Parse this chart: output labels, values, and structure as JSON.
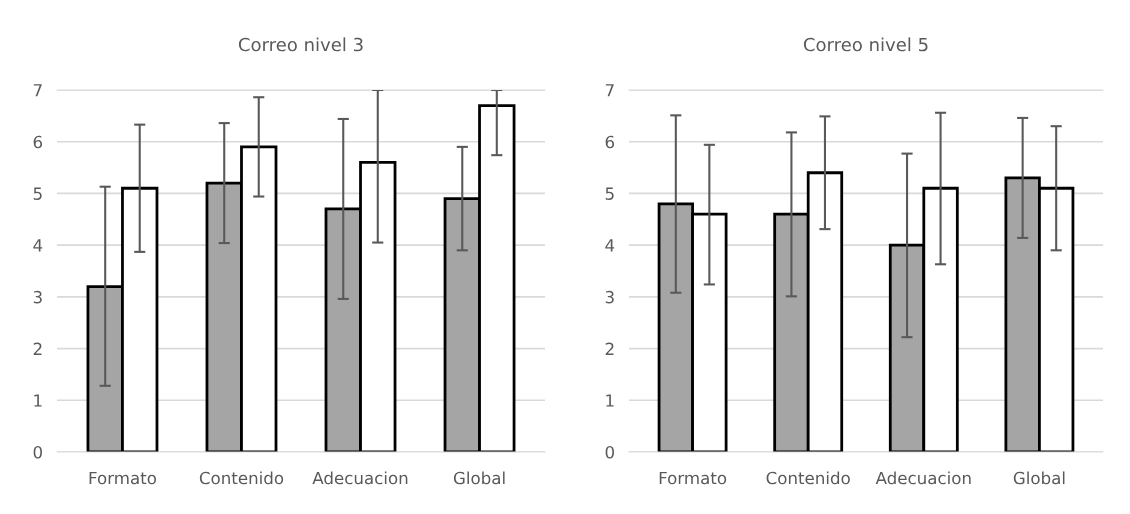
{
  "chart_data": [
    {
      "type": "bar",
      "title": "Correo nivel 3",
      "categories": [
        "Formato",
        "Contenido",
        "Adecuacion",
        "Global"
      ],
      "ylim": [
        0,
        7
      ],
      "yticks": [
        0,
        1,
        2,
        3,
        4,
        5,
        6,
        7
      ],
      "grid": "y",
      "legend": false,
      "series": [
        {
          "color": "#a5a5a5",
          "values": [
            3.2,
            5.2,
            4.7,
            4.9
          ],
          "errors": [
            [
              1.28,
              5.13
            ],
            [
              4.04,
              6.36
            ],
            [
              2.96,
              6.44
            ],
            [
              3.9,
              5.9
            ]
          ]
        },
        {
          "color": "#ffffff",
          "values": [
            5.1,
            5.9,
            5.6,
            6.7
          ],
          "errors": [
            [
              3.87,
              6.33
            ],
            [
              4.94,
              6.86
            ],
            [
              4.05,
              7
            ],
            [
              5.74,
              7
            ]
          ]
        }
      ]
    },
    {
      "type": "bar",
      "title": "Correo nivel 5",
      "categories": [
        "Formato",
        "Contenido",
        "Adecuacion",
        "Global"
      ],
      "ylim": [
        0,
        7
      ],
      "yticks": [
        0,
        1,
        2,
        3,
        4,
        5,
        6,
        7
      ],
      "grid": "y",
      "legend": false,
      "series": [
        {
          "color": "#a5a5a5",
          "values": [
            4.8,
            4.6,
            4.0,
            5.3
          ],
          "errors": [
            [
              3.08,
              6.51
            ],
            [
              3.01,
              6.18
            ],
            [
              2.22,
              5.77
            ],
            [
              4.14,
              6.46
            ]
          ]
        },
        {
          "color": "#ffffff",
          "values": [
            4.6,
            5.4,
            5.1,
            5.1
          ],
          "errors": [
            [
              3.24,
              5.94
            ],
            [
              4.31,
              6.49
            ],
            [
              3.63,
              6.56
            ],
            [
              3.9,
              6.3
            ]
          ]
        }
      ]
    }
  ]
}
